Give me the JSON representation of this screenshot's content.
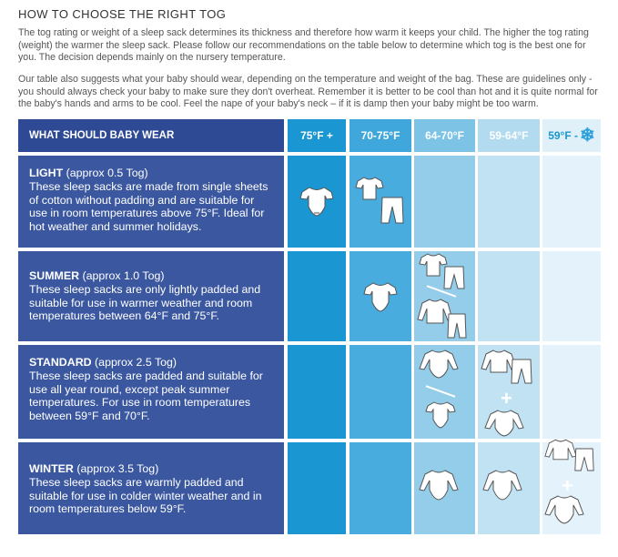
{
  "heading": "HOW TO CHOOSE THE RIGHT TOG",
  "intro": {
    "p1": "The tog rating or weight of a sleep sack determines its thickness and therefore how warm it keeps your child. The higher the tog rating (weight) the warmer the sleep sack. Please follow our recommendations on the table below to determine which tog is the best one for you. The decision depends mainly on the nursery temperature.",
    "p2": "Our table also suggests what your baby should wear, depending on the temperature and weight of the bag. These are guidelines only - you should always check your baby to make sure they don't overheat. Remember it is better to be cool than hot and it is quite normal for the baby's hands and arms to be cool. Feel the nape of your baby's neck – if it is damp then your baby might be too warm."
  },
  "table": {
    "corner_label": "WHAT SHOULD BABY WEAR",
    "columns": [
      "75°F +",
      "70-75°F",
      "64-70°F",
      "59-64°F",
      "59°F -"
    ],
    "column_colors": [
      "#1a96d2",
      "#3fa7dc",
      "#7cc3e6",
      "#b3dbf0",
      "#dff0f9"
    ],
    "snowflake_icon": "snowflake-icon",
    "rows": [
      {
        "name": "LIGHT",
        "tog": " (approx 0.5 Tog)",
        "desc": "These sleep sacks are made from single sheets of cotton without padding and are suitable for use in room temperatures above 75°F. Ideal for hot weather and summer holidays."
      },
      {
        "name": "SUMMER",
        "tog": " (approx 1.0 Tog)",
        "desc": "These sleep sacks are only lightly padded and suitable for use in warmer weather and room temperatures between 64°F and 75°F."
      },
      {
        "name": "STANDARD",
        "tog": " (approx 2.5 Tog)",
        "desc": "These sleep sacks are padded and suitable for use all year round, except peak summer temperatures. For use in room temperatures between 59°F and 70°F."
      },
      {
        "name": "WINTER",
        "tog": " (approx 3.5 Tog)",
        "desc": "These sleep sacks are warmly padded and suitable for use in colder winter weather and in room temperatures below 59°F."
      }
    ],
    "plus_sign": "+"
  }
}
